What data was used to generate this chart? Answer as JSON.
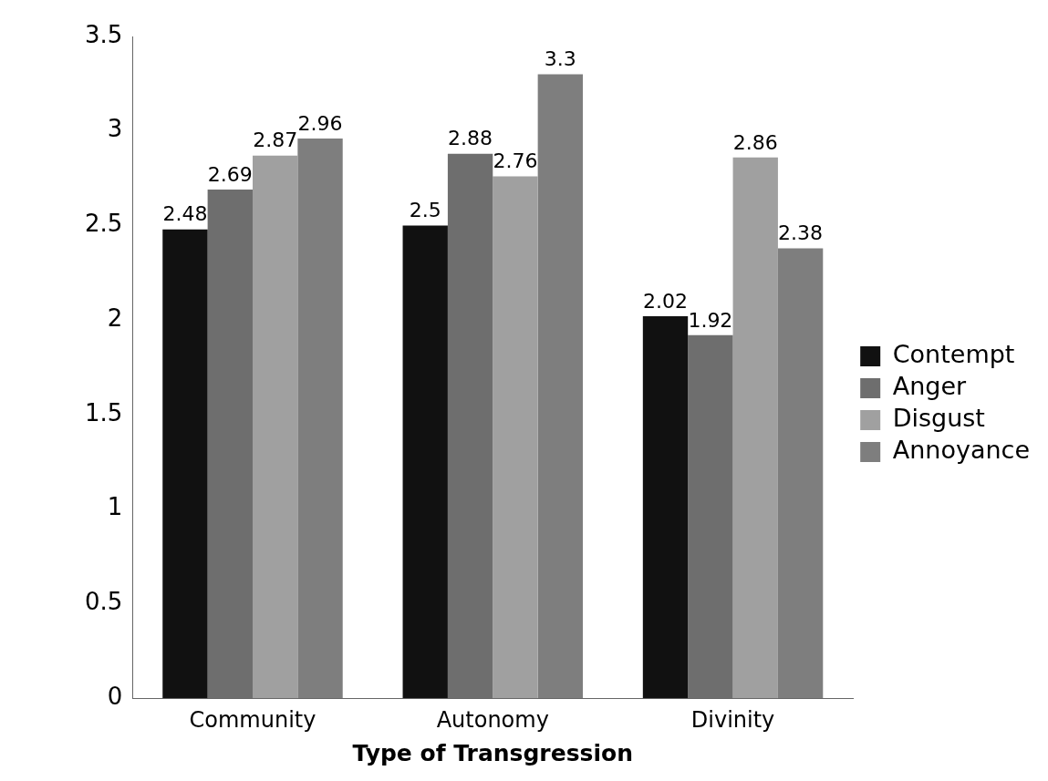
{
  "chart_data": {
    "type": "bar",
    "xlabel": "Type of Transgression",
    "categories": [
      "Community",
      "Autonomy",
      "Divinity"
    ],
    "series": [
      {
        "name": "Contempt",
        "color": "#111111",
        "values": [
          2.48,
          2.5,
          2.02
        ]
      },
      {
        "name": "Anger",
        "color": "#6e6e6e",
        "values": [
          2.69,
          2.88,
          1.92
        ]
      },
      {
        "name": "Disgust",
        "color": "#a0a0a0",
        "values": [
          2.87,
          2.76,
          2.86
        ]
      },
      {
        "name": "Annoyance",
        "color": "#7e7e7e",
        "values": [
          2.96,
          3.3,
          2.38
        ]
      }
    ],
    "ylim": [
      0,
      3.5
    ],
    "yticks": [
      0,
      0.5,
      1,
      1.5,
      2,
      2.5,
      3,
      3.5
    ],
    "grid": false,
    "legend": "right",
    "data_labels": true
  }
}
